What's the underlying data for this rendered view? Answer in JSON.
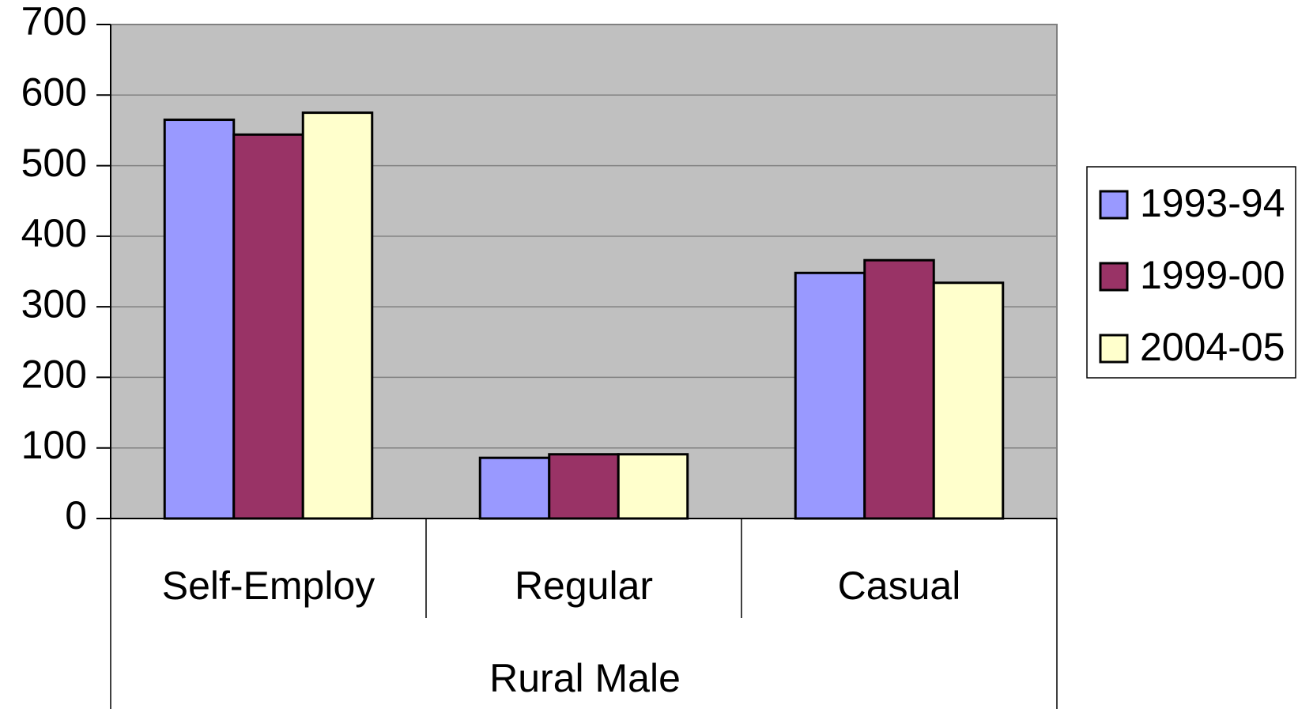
{
  "chart_data": {
    "type": "bar",
    "group_label": "Rural Male",
    "categories": [
      "Self-Employ",
      "Regular",
      "Casual"
    ],
    "series": [
      {
        "name": "1993-94",
        "color": "#9999ff",
        "values": [
          565,
          86,
          348
        ]
      },
      {
        "name": "1999-00",
        "color": "#993366",
        "values": [
          544,
          91,
          366
        ]
      },
      {
        "name": "2004-05",
        "color": "#ffffcc",
        "values": [
          575,
          91,
          334
        ]
      }
    ],
    "ylim": [
      0,
      700
    ],
    "yticks": [
      0,
      100,
      200,
      300,
      400,
      500,
      600,
      700
    ],
    "grid": true,
    "legend": "right"
  }
}
